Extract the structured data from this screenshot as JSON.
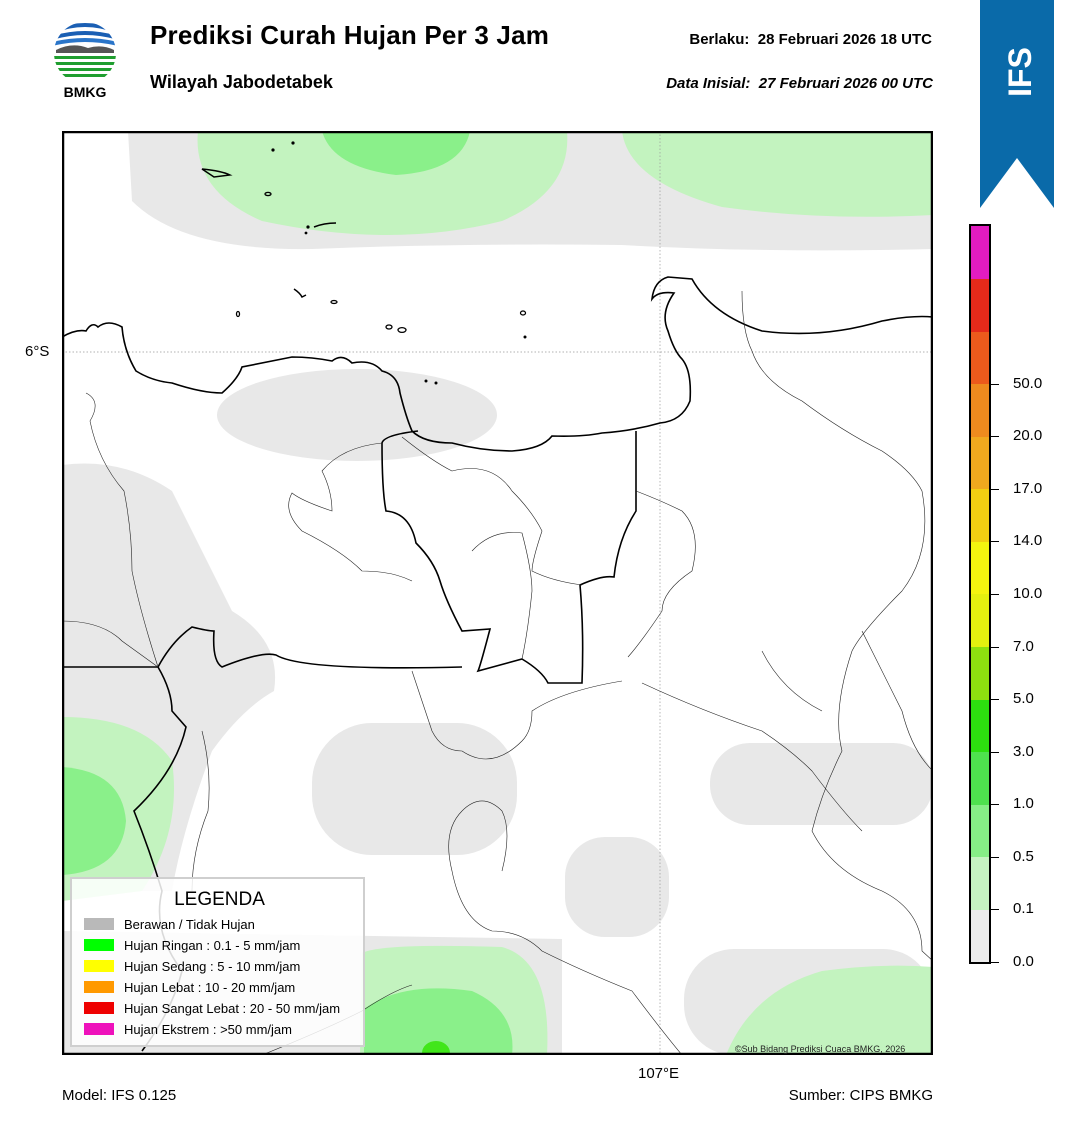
{
  "header": {
    "logo_text": "BMKG",
    "title": "Prediksi Curah Hujan Per 3 Jam",
    "subtitle": "Wilayah Jabodetabek",
    "valid_label": "Berlaku:",
    "valid_value": "28 Februari 2026 18 UTC",
    "init_label": "Data Inisial:",
    "init_value": "27 Februari 2026 00 UTC"
  },
  "banner": {
    "text": "IFS",
    "color": "#0a6aa9"
  },
  "map": {
    "lat_label": "6°S",
    "lon_label": "107°E",
    "copyright": "©Sub Bidang Prediksi Cuaca BMKG, 2026"
  },
  "legend": {
    "title": "LEGENDA",
    "items": [
      {
        "label": "Berawan / Tidak Hujan",
        "color": "#b9b9b9"
      },
      {
        "label": "Hujan Ringan : 0.1 - 5 mm/jam",
        "color": "#00ff00"
      },
      {
        "label": "Hujan Sedang : 5 - 10 mm/jam",
        "color": "#ffff00"
      },
      {
        "label": "Hujan Lebat : 10 - 20 mm/jam",
        "color": "#ff9900"
      },
      {
        "label": "Hujan Sangat Lebat : 20 - 50 mm/jam",
        "color": "#ee0000"
      },
      {
        "label": "Hujan Ekstrem : >50 mm/jam",
        "color": "#ee11bb"
      }
    ]
  },
  "colorbar": {
    "segments": [
      "#ececec",
      "#c5f3c1",
      "#86ee86",
      "#4ee14e",
      "#2dde0f",
      "#8ee00f",
      "#e4f00f",
      "#f4f40f",
      "#f2ce12",
      "#f0a81e",
      "#ee8a1e",
      "#ec5a1c",
      "#e42a1a",
      "#e21cc0"
    ],
    "labels": [
      "0.0",
      "0.1",
      "0.5",
      "1.0",
      "3.0",
      "5.0",
      "7.0",
      "10.0",
      "14.0",
      "17.0",
      "20.0",
      "50.0"
    ]
  },
  "footer": {
    "model": "Model: IFS 0.125",
    "source": "Sumber: CIPS BMKG"
  }
}
